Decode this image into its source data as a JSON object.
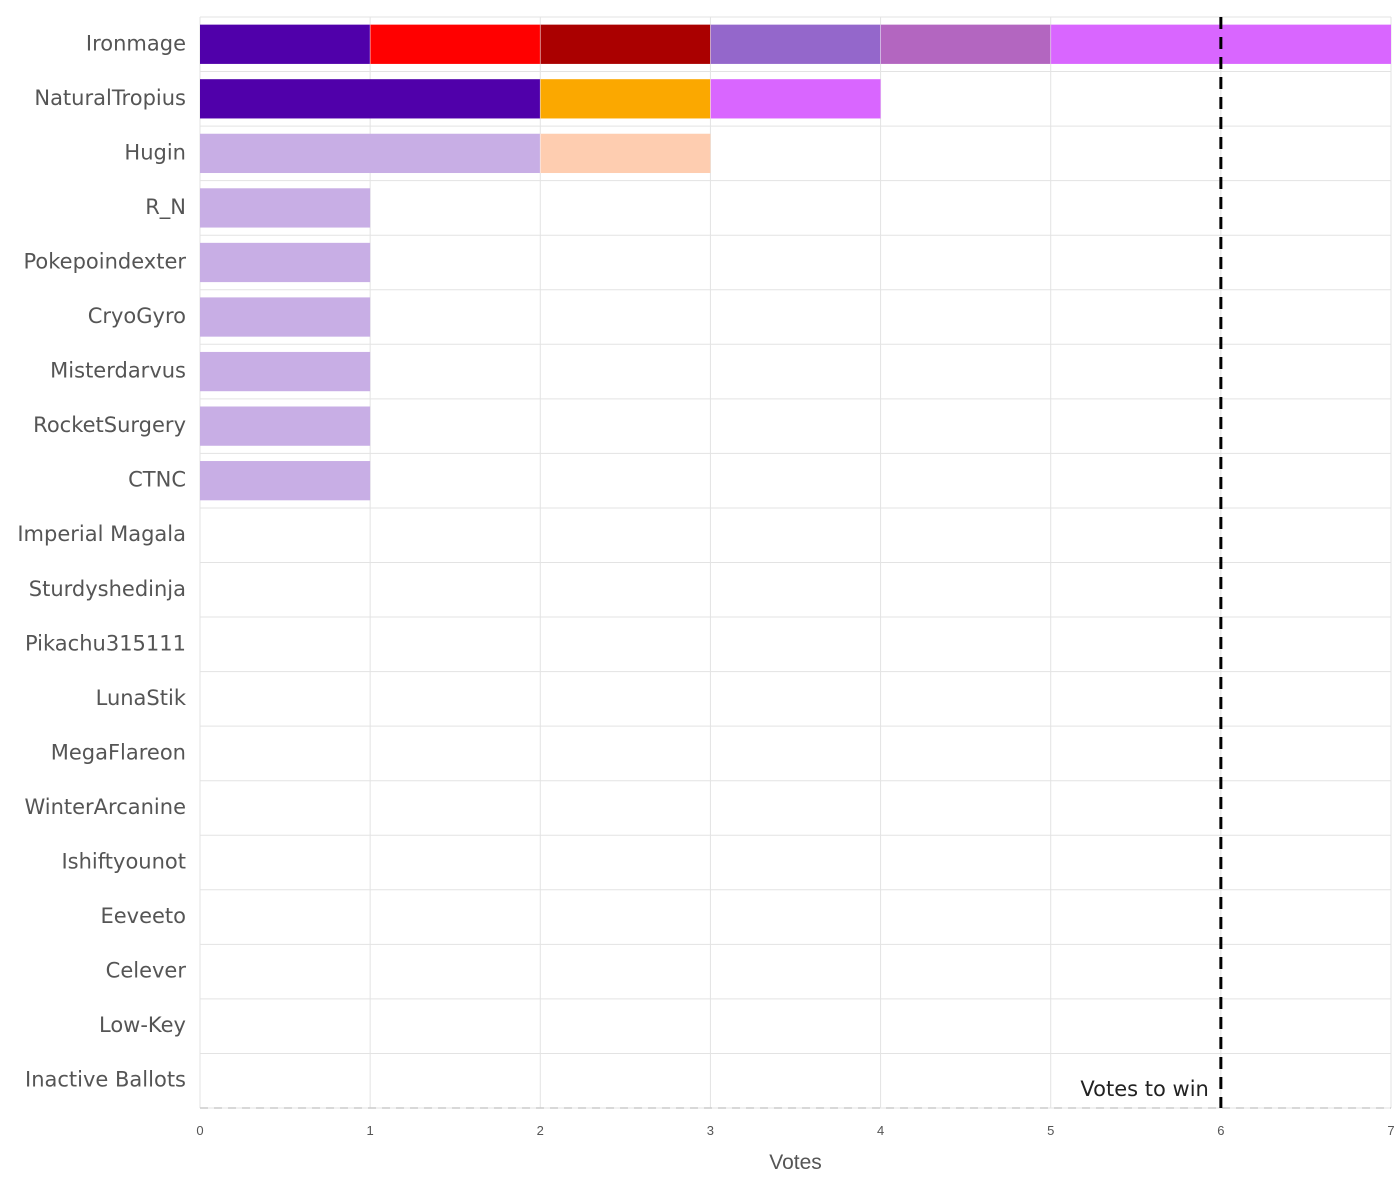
{
  "chart_data": {
    "type": "bar",
    "orientation": "horizontal",
    "stacked": true,
    "title": "",
    "xlabel": "Votes",
    "ylabel": "",
    "xlim": [
      0,
      7
    ],
    "x_ticks": [
      0,
      1,
      2,
      3,
      4,
      5,
      6,
      7
    ],
    "grid": true,
    "legend": "none",
    "categories": [
      "Ironmage",
      "NaturalTropius",
      "Hugin",
      "R_N",
      "Pokepoindexter",
      "CryoGyro",
      "Misterdarvus",
      "RocketSurgery",
      "CTNC",
      "Imperial Magala",
      "Sturdyshedinja",
      "Pikachu315111",
      "LunaStik",
      "MegaFlareon",
      "WinterArcanine",
      "Ishiftyounot",
      "Eeveeto",
      "Celever",
      "Low-Key",
      "Inactive Ballots"
    ],
    "segments": [
      [
        {
          "value": 1,
          "color": "#5000aa"
        },
        {
          "value": 1,
          "color": "#ff0000"
        },
        {
          "value": 1,
          "color": "#aa0000"
        },
        {
          "value": 1,
          "color": "#9467cb"
        },
        {
          "value": 1,
          "color": "#b366c0"
        },
        {
          "value": 2,
          "color": "#d966ff"
        }
      ],
      [
        {
          "value": 2,
          "color": "#5000aa"
        },
        {
          "value": 1,
          "color": "#fba800"
        },
        {
          "value": 1,
          "color": "#d966ff"
        }
      ],
      [
        {
          "value": 2,
          "color": "#c8aee5"
        },
        {
          "value": 1,
          "color": "#fecdb0"
        }
      ],
      [
        {
          "value": 1,
          "color": "#c8aee5"
        }
      ],
      [
        {
          "value": 1,
          "color": "#c8aee5"
        }
      ],
      [
        {
          "value": 1,
          "color": "#c8aee5"
        }
      ],
      [
        {
          "value": 1,
          "color": "#c8aee5"
        }
      ],
      [
        {
          "value": 1,
          "color": "#c8aee5"
        }
      ],
      [
        {
          "value": 1,
          "color": "#c8aee5"
        }
      ],
      [],
      [],
      [],
      [],
      [],
      [],
      [],
      [],
      [],
      [],
      []
    ],
    "threshold": {
      "value": 6,
      "label": "Votes to win",
      "color": "#000000"
    }
  }
}
